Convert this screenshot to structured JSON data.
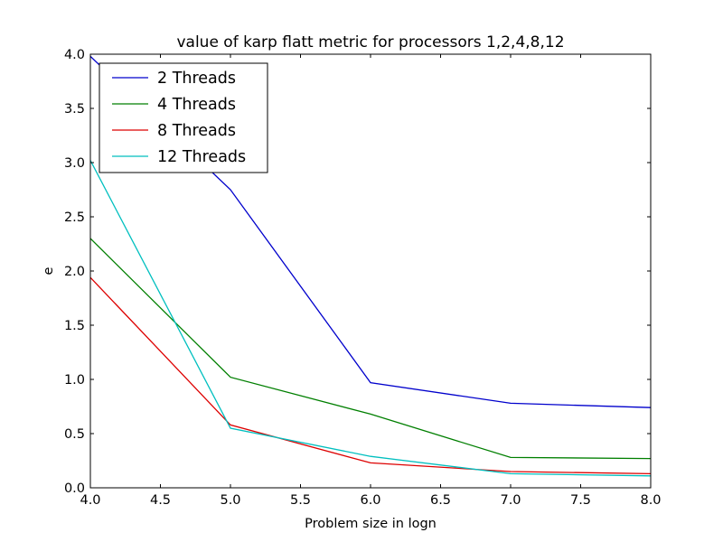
{
  "chart_data": {
    "type": "line",
    "title": "value of karp flatt metric for processors 1,2,4,8,12",
    "xlabel": "Problem size in logn",
    "ylabel": "e",
    "xlim": [
      4.0,
      8.0
    ],
    "ylim": [
      0.0,
      4.0
    ],
    "x_ticks": [
      "4.0",
      "4.5",
      "5.0",
      "5.5",
      "6.0",
      "6.5",
      "7.0",
      "7.5",
      "8.0"
    ],
    "y_ticks": [
      "0.0",
      "0.5",
      "1.0",
      "1.5",
      "2.0",
      "2.5",
      "3.0",
      "3.5",
      "4.0"
    ],
    "grid": false,
    "legend_position": "top-left",
    "x": [
      4,
      5,
      6,
      7,
      8
    ],
    "series": [
      {
        "name": "2 Threads",
        "color": "#0000cc",
        "values": [
          3.98,
          2.75,
          0.97,
          0.78,
          0.74
        ]
      },
      {
        "name": "4 Threads",
        "color": "#007f00",
        "values": [
          2.3,
          1.02,
          0.68,
          0.28,
          0.27
        ]
      },
      {
        "name": "8 Threads",
        "color": "#dd0000",
        "values": [
          1.94,
          0.58,
          0.23,
          0.15,
          0.13
        ]
      },
      {
        "name": "12 Threads",
        "color": "#00bfbf",
        "values": [
          3.02,
          0.55,
          0.29,
          0.13,
          0.11
        ]
      }
    ]
  }
}
